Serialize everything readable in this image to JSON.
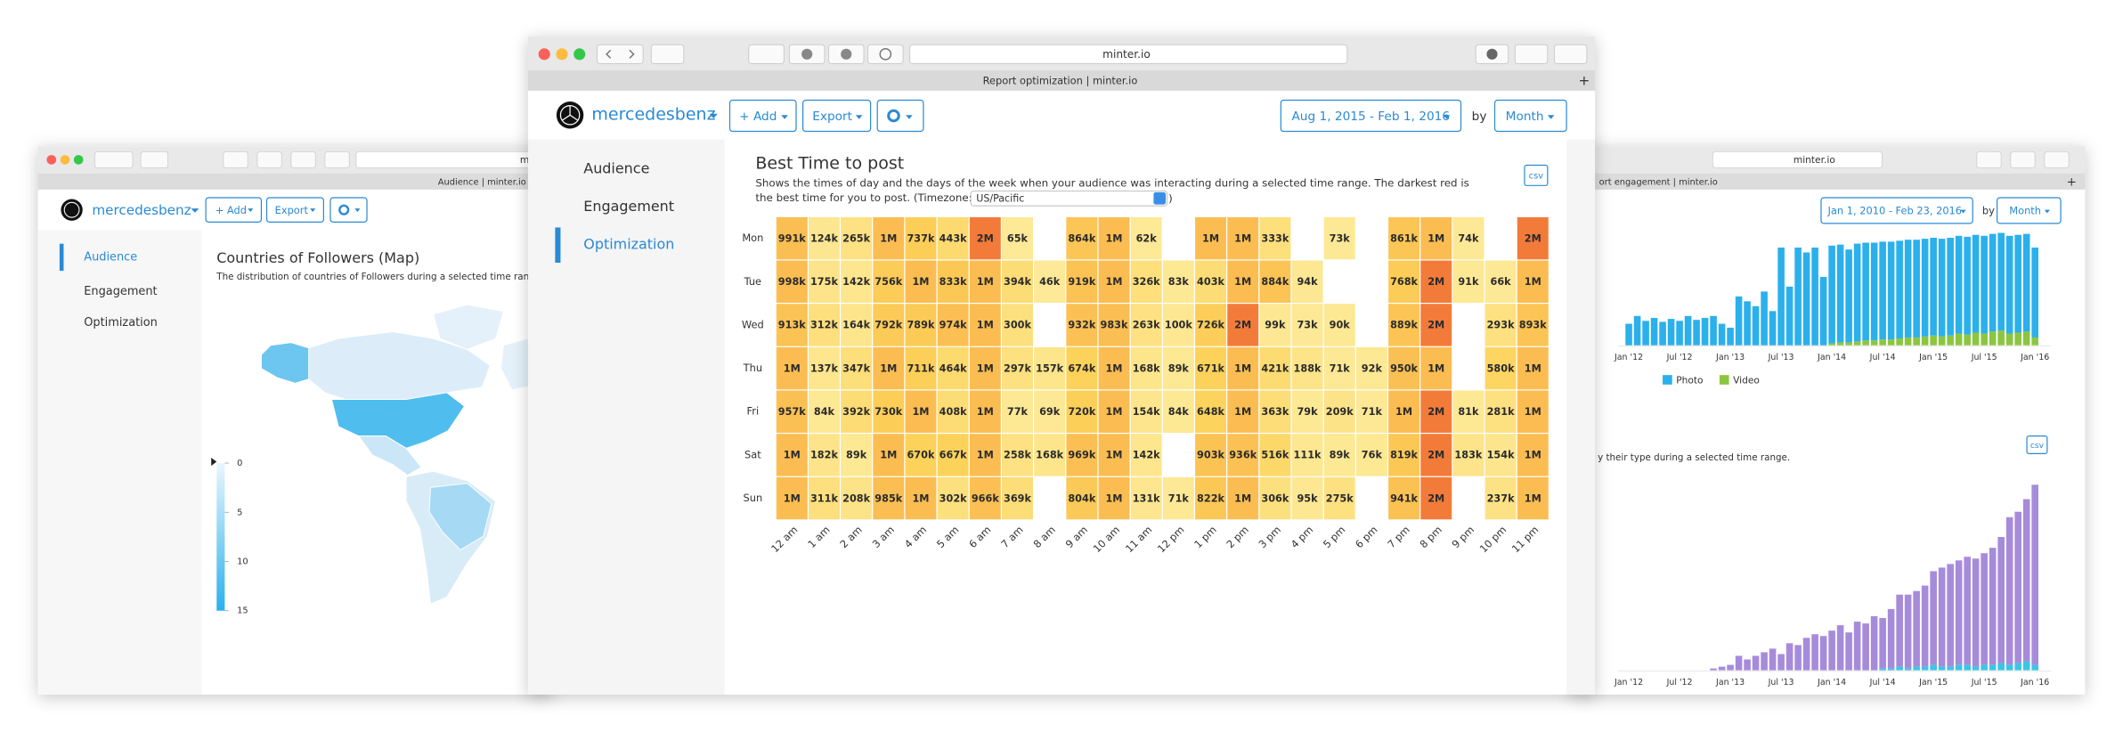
{
  "left": {
    "url": "m",
    "tab": "Audience | minter.io",
    "account": "mercedesbenz",
    "add": "+ Add",
    "export": "Export",
    "nav": [
      "Audience",
      "Engagement",
      "Optimization"
    ],
    "map_title": "Countries of Followers (Map)",
    "map_subtitle": "The distribution of countries of Followers during a selected time range.",
    "legend_ticks": [
      0,
      5,
      10,
      15
    ],
    "legend_colors": [
      "#eaf6fd",
      "#2bb1eb"
    ]
  },
  "center": {
    "url": "minter.io",
    "tab": "Report optimization | minter.io",
    "account": "mercedesbenz",
    "add": "+ Add",
    "export": "Export",
    "date_range": "Aug 1, 2015 - Feb 1, 2016",
    "by": "by",
    "period": "Month",
    "nav": [
      "Audience",
      "Engagement",
      "Optimization"
    ],
    "csv": "csv"
  },
  "right": {
    "url": "minter.io",
    "tab": "ort engagement | minter.io",
    "date_range": "Jan 1, 2010 - Feb 23, 2016",
    "by": "by",
    "period": "Month",
    "subtitle": "y their type during a selected time range.",
    "csv": "csv"
  },
  "chart_data": [
    {
      "type": "heatmap",
      "title": "Best Time to post",
      "subtitle": [
        "Shows the times of day and the days of the week when your audience was interacting during a selected time range. The darkest red is",
        "the best time for you to post. (Timezone:"
      ],
      "timezone": "US/Pacific",
      "timezone_close": ")",
      "x": [
        "12 am",
        "1 am",
        "2 am",
        "3 am",
        "4 am",
        "5 am",
        "6 am",
        "7 am",
        "8 am",
        "9 am",
        "10 am",
        "11 am",
        "12 pm",
        "1 pm",
        "2 pm",
        "3 pm",
        "4 pm",
        "5 pm",
        "6 pm",
        "7 pm",
        "8 pm",
        "9 pm",
        "10 pm",
        "11 pm"
      ],
      "y": [
        "Mon",
        "Tue",
        "Wed",
        "Thu",
        "Fri",
        "Sat",
        "Sun"
      ],
      "colors": [
        "#fdeb9c",
        "#fcd25a",
        "#f9a84a",
        "#f37b3a"
      ],
      "values": [
        [
          991000,
          124000,
          265000,
          1000000,
          737000,
          443000,
          2000000,
          65000,
          null,
          864000,
          1000000,
          62000,
          null,
          1000000,
          1000000,
          333000,
          null,
          73000,
          null,
          861000,
          1000000,
          74000,
          null,
          2000000
        ],
        [
          998000,
          175000,
          142000,
          756000,
          1000000,
          833000,
          1000000,
          394000,
          46000,
          919000,
          1000000,
          326000,
          83000,
          403000,
          1000000,
          884000,
          94000,
          null,
          null,
          768000,
          2000000,
          91000,
          66000,
          1000000
        ],
        [
          913000,
          312000,
          164000,
          792000,
          789000,
          974000,
          1000000,
          300000,
          null,
          932000,
          983000,
          263000,
          100000,
          726000,
          2000000,
          99000,
          73000,
          90000,
          null,
          889000,
          2000000,
          null,
          293000,
          893000
        ],
        [
          1000000,
          137000,
          347000,
          1000000,
          711000,
          464000,
          1000000,
          297000,
          157000,
          674000,
          1000000,
          168000,
          89000,
          671000,
          1000000,
          421000,
          188000,
          71000,
          92000,
          950000,
          1000000,
          null,
          580000,
          1000000
        ],
        [
          957000,
          84000,
          392000,
          730000,
          1000000,
          408000,
          1000000,
          77000,
          69000,
          720000,
          1000000,
          154000,
          84000,
          648000,
          1000000,
          363000,
          79000,
          209000,
          71000,
          1000000,
          2000000,
          81000,
          281000,
          1000000
        ],
        [
          1000000,
          182000,
          89000,
          1000000,
          670000,
          667000,
          1000000,
          258000,
          168000,
          969000,
          1000000,
          142000,
          null,
          903000,
          936000,
          516000,
          111000,
          89000,
          76000,
          819000,
          2000000,
          183000,
          154000,
          1000000
        ],
        [
          1000000,
          311000,
          208000,
          985000,
          1000000,
          302000,
          966000,
          369000,
          null,
          804000,
          1000000,
          131000,
          71000,
          822000,
          1000000,
          306000,
          95000,
          275000,
          null,
          941000,
          2000000,
          null,
          237000,
          1000000
        ]
      ],
      "value_labels": [
        [
          "991k",
          "124k",
          "265k",
          "1M",
          "737k",
          "443k",
          "2M",
          "65k",
          null,
          "864k",
          "1M",
          "62k",
          null,
          "1M",
          "1M",
          "333k",
          null,
          "73k",
          null,
          "861k",
          "1M",
          "74k",
          null,
          "2M"
        ],
        [
          "998k",
          "175k",
          "142k",
          "756k",
          "1M",
          "833k",
          "1M",
          "394k",
          "46k",
          "919k",
          "1M",
          "326k",
          "83k",
          "403k",
          "1M",
          "884k",
          "94k",
          null,
          null,
          "768k",
          "2M",
          "91k",
          "66k",
          "1M"
        ],
        [
          "913k",
          "312k",
          "164k",
          "792k",
          "789k",
          "974k",
          "1M",
          "300k",
          null,
          "932k",
          "983k",
          "263k",
          "100k",
          "726k",
          "2M",
          "99k",
          "73k",
          "90k",
          null,
          "889k",
          "2M",
          null,
          "293k",
          "893k"
        ],
        [
          "1M",
          "137k",
          "347k",
          "1M",
          "711k",
          "464k",
          "1M",
          "297k",
          "157k",
          "674k",
          "1M",
          "168k",
          "89k",
          "671k",
          "1M",
          "421k",
          "188k",
          "71k",
          "92k",
          "950k",
          "1M",
          null,
          "580k",
          "1M"
        ],
        [
          "957k",
          "84k",
          "392k",
          "730k",
          "1M",
          "408k",
          "1M",
          "77k",
          "69k",
          "720k",
          "1M",
          "154k",
          "84k",
          "648k",
          "1M",
          "363k",
          "79k",
          "209k",
          "71k",
          "1M",
          "2M",
          "81k",
          "281k",
          "1M"
        ],
        [
          "1M",
          "182k",
          "89k",
          "1M",
          "670k",
          "667k",
          "1M",
          "258k",
          "168k",
          "969k",
          "1M",
          "142k",
          null,
          "903k",
          "936k",
          "516k",
          "111k",
          "89k",
          "76k",
          "819k",
          "2M",
          "183k",
          "154k",
          "1M"
        ],
        [
          "1M",
          "311k",
          "208k",
          "985k",
          "1M",
          "302k",
          "966k",
          "369k",
          null,
          "804k",
          "1M",
          "131k",
          "71k",
          "822k",
          "1M",
          "306k",
          "95k",
          "275k",
          null,
          "941k",
          "2M",
          null,
          "237k",
          "1M"
        ]
      ]
    },
    {
      "type": "stacked_bar",
      "categories": [
        "Jan '12",
        null,
        null,
        null,
        null,
        null,
        "Jul '12",
        null,
        null,
        null,
        null,
        null,
        "Jan '13",
        null,
        null,
        null,
        null,
        null,
        "Jul '13",
        null,
        null,
        null,
        null,
        null,
        "Jan '14",
        null,
        null,
        null,
        null,
        null,
        "Jul '14",
        null,
        null,
        null,
        null,
        null,
        "Jan '15",
        null,
        null,
        null,
        null,
        null,
        "Jul '15",
        null,
        null,
        null,
        null,
        null,
        "Jan '16"
      ],
      "series": [
        {
          "name": "Photo",
          "color": "#2bb0ec",
          "values": [
            22,
            30,
            25,
            28,
            24,
            27,
            25,
            30,
            26,
            28,
            30,
            22,
            18,
            50,
            45,
            40,
            55,
            35,
            100,
            60,
            100,
            95,
            100,
            70,
            100,
            100,
            95,
            100,
            100,
            100,
            100,
            100,
            100,
            100,
            100,
            100,
            100,
            100,
            100,
            100,
            100,
            100,
            100,
            100,
            100,
            100,
            100,
            100,
            92
          ]
        },
        {
          "name": "Video",
          "color": "#8cc63f",
          "values": [
            0,
            0,
            0,
            0,
            0,
            0,
            0,
            0,
            0,
            0,
            0,
            0,
            0,
            0,
            0,
            0,
            0,
            0,
            0,
            0,
            0,
            0,
            0,
            0,
            2,
            3,
            3,
            4,
            5,
            5,
            6,
            6,
            7,
            8,
            8,
            9,
            10,
            9,
            10,
            12,
            11,
            13,
            12,
            14,
            15,
            12,
            13,
            14,
            8
          ]
        }
      ],
      "legend": "bottom"
    },
    {
      "type": "stacked_bar",
      "categories": [
        "Jan '12",
        null,
        null,
        null,
        null,
        null,
        "Jul '12",
        null,
        null,
        null,
        null,
        null,
        "Jan '13",
        null,
        null,
        null,
        null,
        null,
        "Jul '13",
        null,
        null,
        null,
        null,
        null,
        "Jan '14",
        null,
        null,
        null,
        null,
        null,
        "Jul '14",
        null,
        null,
        null,
        null,
        null,
        "Jan '15",
        null,
        null,
        null,
        null,
        null,
        "Jul '15",
        null,
        null,
        null,
        null,
        null,
        "Jan '16"
      ],
      "series": [
        {
          "color": "#a78bdb",
          "values": [
            0,
            0,
            0,
            0,
            0,
            0,
            0,
            0,
            0,
            0,
            1,
            2,
            3,
            8,
            6,
            8,
            10,
            12,
            9,
            15,
            14,
            18,
            20,
            19,
            22,
            25,
            21,
            27,
            26,
            30,
            28,
            33,
            40,
            41,
            42,
            45,
            52,
            55,
            57,
            58,
            60,
            60,
            62,
            65,
            70,
            82,
            84,
            90,
            100
          ]
        },
        {
          "color": "#3ac6e8",
          "values": [
            0,
            0,
            0,
            0,
            0,
            0,
            0,
            0,
            0,
            0,
            0,
            0,
            0,
            0,
            0,
            0,
            0,
            0,
            0,
            0,
            0,
            0,
            0,
            0,
            0,
            0,
            0,
            0,
            0,
            0,
            1,
            1,
            2,
            1,
            2,
            2,
            3,
            2,
            2,
            3,
            3,
            2,
            3,
            3,
            4,
            3,
            4,
            5,
            3
          ]
        }
      ]
    }
  ]
}
